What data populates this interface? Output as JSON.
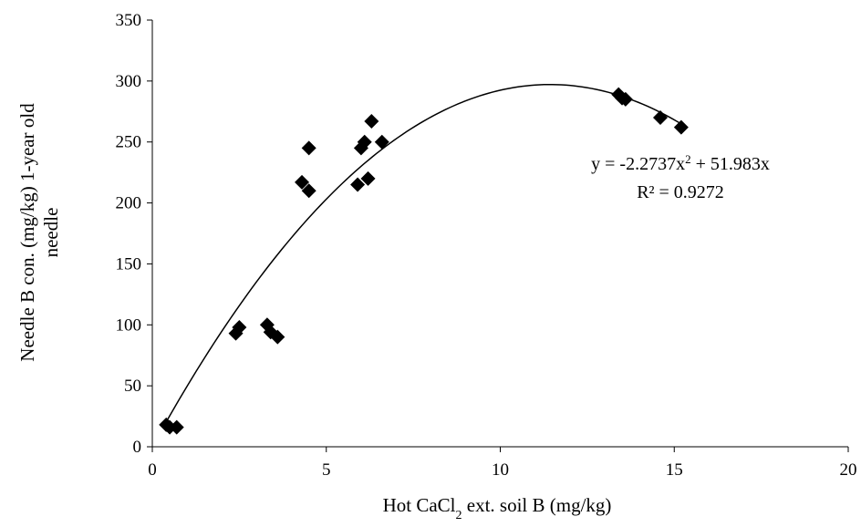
{
  "chart_data": {
    "type": "scatter",
    "title": "",
    "xlabel": {
      "pre": "Hot CaCl",
      "sub": "2",
      "post": " ext. soil B (mg/kg)"
    },
    "ylabel_lines": [
      "Needle B con. (mg/kg) 1-year old",
      "needle"
    ],
    "xlim": [
      0,
      20
    ],
    "ylim": [
      0,
      350
    ],
    "xticks": [
      0,
      5,
      10,
      15,
      20
    ],
    "yticks": [
      0,
      50,
      100,
      150,
      200,
      250,
      300,
      350
    ],
    "grid": false,
    "legend": "none",
    "marker": "diamond",
    "marker_color": "#000000",
    "points": [
      {
        "x": 0.4,
        "y": 18
      },
      {
        "x": 0.5,
        "y": 16
      },
      {
        "x": 0.7,
        "y": 16
      },
      {
        "x": 2.4,
        "y": 93
      },
      {
        "x": 2.5,
        "y": 98
      },
      {
        "x": 3.3,
        "y": 100
      },
      {
        "x": 3.4,
        "y": 94
      },
      {
        "x": 3.6,
        "y": 90
      },
      {
        "x": 4.3,
        "y": 217
      },
      {
        "x": 4.5,
        "y": 210
      },
      {
        "x": 4.5,
        "y": 245
      },
      {
        "x": 5.9,
        "y": 215
      },
      {
        "x": 6.0,
        "y": 245
      },
      {
        "x": 6.1,
        "y": 250
      },
      {
        "x": 6.2,
        "y": 220
      },
      {
        "x": 6.3,
        "y": 267
      },
      {
        "x": 6.6,
        "y": 250
      },
      {
        "x": 13.4,
        "y": 289
      },
      {
        "x": 13.5,
        "y": 286
      },
      {
        "x": 13.6,
        "y": 285
      },
      {
        "x": 14.6,
        "y": 270
      },
      {
        "x": 15.2,
        "y": 262
      }
    ],
    "trendline": {
      "type": "polynomial",
      "a": -2.2737,
      "b": 51.983,
      "c": 0,
      "x_range": [
        0.4,
        15.2
      ],
      "equation": {
        "pre": "y = -2.2737x",
        "sup": "2",
        "post": " + 51.983x"
      },
      "r2": "R² = 0.9272"
    }
  }
}
